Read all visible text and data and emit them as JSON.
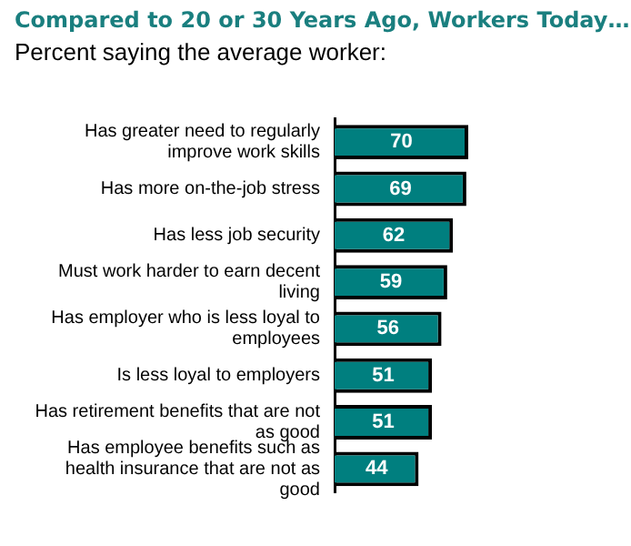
{
  "chart_data": {
    "type": "bar",
    "orientation": "horizontal",
    "title": "Compared to 20 or 30 Years Ago, Workers Today…",
    "subtitle": "Percent saying the average worker:",
    "categories": [
      "Has greater need to regularly improve work skills",
      "Has more on-the-job stress",
      "Has less job security",
      "Must work harder to earn decent living",
      "Has employer who is less loyal to employees",
      "Is less loyal to employers",
      "Has retirement benefits that are not as good",
      "Has employee benefits such as health insurance that are not as good"
    ],
    "values": [
      70,
      69,
      62,
      59,
      56,
      51,
      51,
      44
    ],
    "color": "#007f7f",
    "data_labels": true
  }
}
